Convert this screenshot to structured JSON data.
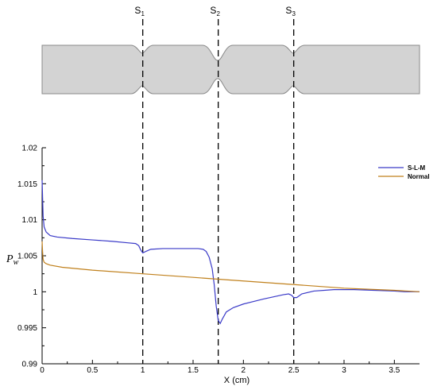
{
  "chart_data": {
    "type": "line",
    "xlabel": "X (cm)",
    "ylabel": {
      "main": "P",
      "sub": "w"
    },
    "xlim": [
      0,
      3.75
    ],
    "ylim": [
      0.99,
      1.02
    ],
    "x_ticks": [
      {
        "v": 0,
        "label": "0"
      },
      {
        "v": 0.5,
        "label": "0.5"
      },
      {
        "v": 1,
        "label": "1"
      },
      {
        "v": 1.5,
        "label": "1.5"
      },
      {
        "v": 2,
        "label": "2"
      },
      {
        "v": 2.5,
        "label": "2.5"
      },
      {
        "v": 3,
        "label": "3"
      },
      {
        "v": 3.5,
        "label": "3.5"
      }
    ],
    "y_ticks": [
      {
        "v": 0.99,
        "label": "0.99"
      },
      {
        "v": 0.995,
        "label": "0.995"
      },
      {
        "v": 1.0,
        "label": "1"
      },
      {
        "v": 1.005,
        "label": "1.005"
      },
      {
        "v": 1.01,
        "label": "1.01"
      },
      {
        "v": 1.015,
        "label": "1.015"
      },
      {
        "v": 1.02,
        "label": "1.02"
      }
    ],
    "legend_position": "top-right",
    "sections": [
      {
        "label": "S",
        "sub": "1",
        "x": 1.0
      },
      {
        "label": "S",
        "sub": "2",
        "x": 1.75
      },
      {
        "label": "S",
        "sub": "3",
        "x": 2.5
      }
    ],
    "series": [
      {
        "name": "S-L-M",
        "color": "#3a3ac8",
        "points": [
          [
            0.0,
            1.0155
          ],
          [
            0.005,
            1.013
          ],
          [
            0.01,
            1.0105
          ],
          [
            0.02,
            1.009
          ],
          [
            0.04,
            1.0083
          ],
          [
            0.08,
            1.0078
          ],
          [
            0.15,
            1.0076
          ],
          [
            0.3,
            1.0074
          ],
          [
            0.5,
            1.0072
          ],
          [
            0.7,
            1.007
          ],
          [
            0.85,
            1.0068
          ],
          [
            0.93,
            1.0067
          ],
          [
            0.96,
            1.0064
          ],
          [
            0.98,
            1.0058
          ],
          [
            1.0,
            1.0054
          ],
          [
            1.03,
            1.0056
          ],
          [
            1.08,
            1.0059
          ],
          [
            1.2,
            1.006
          ],
          [
            1.4,
            1.006
          ],
          [
            1.55,
            1.006
          ],
          [
            1.6,
            1.0059
          ],
          [
            1.63,
            1.0056
          ],
          [
            1.66,
            1.0048
          ],
          [
            1.69,
            1.0032
          ],
          [
            1.71,
            1.001
          ],
          [
            1.73,
            0.998
          ],
          [
            1.75,
            0.996
          ],
          [
            1.77,
            0.9956
          ],
          [
            1.79,
            0.9962
          ],
          [
            1.83,
            0.9972
          ],
          [
            1.9,
            0.9978
          ],
          [
            2.0,
            0.9983
          ],
          [
            2.2,
            0.999
          ],
          [
            2.4,
            0.9996
          ],
          [
            2.45,
            0.9997
          ],
          [
            2.48,
            0.9995
          ],
          [
            2.5,
            0.9992
          ],
          [
            2.53,
            0.9992
          ],
          [
            2.58,
            0.9997
          ],
          [
            2.7,
            1.0001
          ],
          [
            2.9,
            1.0003
          ],
          [
            3.1,
            1.0003
          ],
          [
            3.3,
            1.0002
          ],
          [
            3.5,
            1.0001
          ],
          [
            3.6,
            1.0
          ],
          [
            3.75,
            1.0
          ]
        ]
      },
      {
        "name": "Normal",
        "color": "#c0801c",
        "points": [
          [
            0.0,
            1.007
          ],
          [
            0.005,
            1.0055
          ],
          [
            0.01,
            1.0045
          ],
          [
            0.02,
            1.0041
          ],
          [
            0.04,
            1.0039
          ],
          [
            0.08,
            1.0037
          ],
          [
            0.2,
            1.0034
          ],
          [
            0.5,
            1.003
          ],
          [
            1.0,
            1.0025
          ],
          [
            1.5,
            1.002
          ],
          [
            2.0,
            1.0015
          ],
          [
            2.5,
            1.001
          ],
          [
            3.0,
            1.0005
          ],
          [
            3.5,
            1.0002
          ],
          [
            3.75,
            1.0
          ]
        ]
      }
    ]
  },
  "nozzle": {
    "fill": "#d3d3d3",
    "stroke": "#888888"
  }
}
